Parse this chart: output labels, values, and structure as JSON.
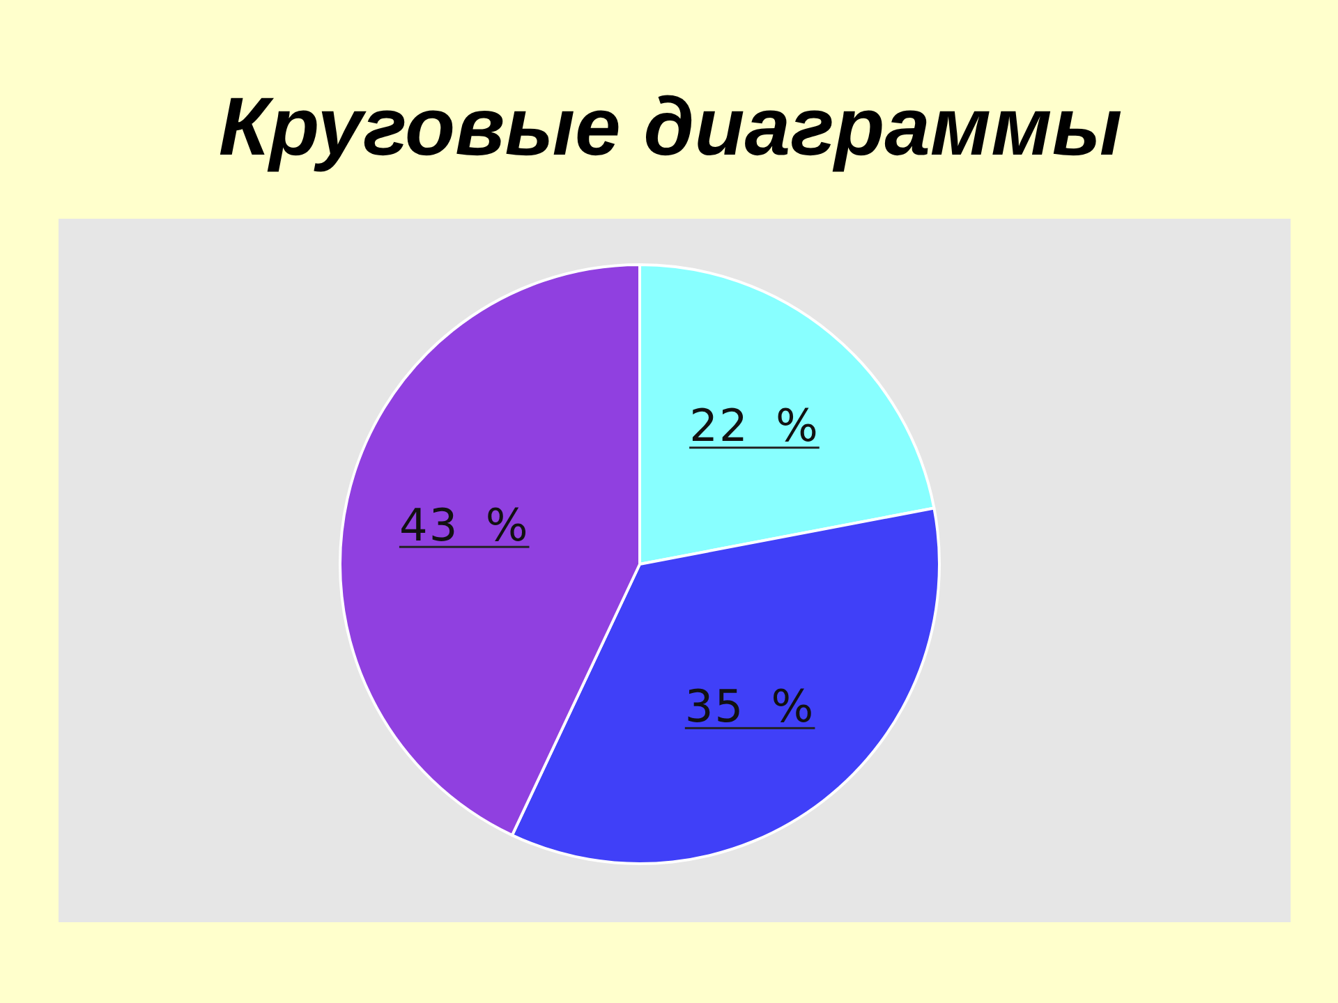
{
  "chart_data": {
    "type": "pie",
    "title": "Круговые диаграммы",
    "categories": [
      null,
      null,
      null
    ],
    "values": [
      22,
      35,
      43
    ],
    "colors": [
      "#88ffff",
      "#4040f8",
      "#9040e0"
    ],
    "value_labels": [
      "22 %",
      "35 %",
      "43 %"
    ]
  }
}
